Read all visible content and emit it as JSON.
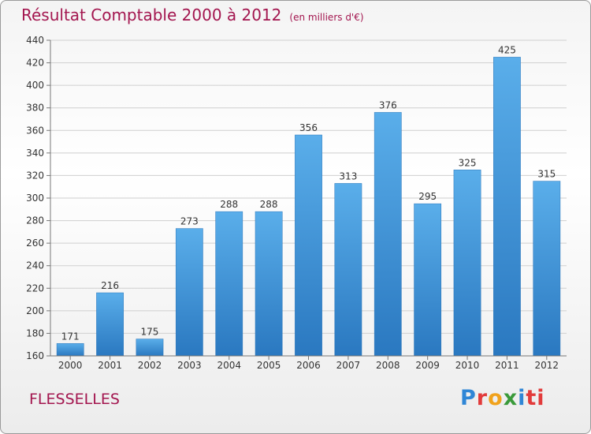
{
  "chart_data": {
    "type": "bar",
    "title": "Résultat Comptable 2000 à 2012",
    "subtitle": "(en milliers d'€)",
    "categories": [
      "2000",
      "2001",
      "2002",
      "2003",
      "2004",
      "2005",
      "2006",
      "2007",
      "2008",
      "2009",
      "2010",
      "2011",
      "2012"
    ],
    "values": [
      171,
      216,
      175,
      273,
      288,
      288,
      356,
      313,
      376,
      295,
      325,
      425,
      315
    ],
    "ylim": [
      160,
      440
    ],
    "yticks": [
      160,
      180,
      200,
      220,
      240,
      260,
      280,
      300,
      320,
      340,
      360,
      380,
      400,
      420,
      440
    ],
    "xlabel": "",
    "ylabel": "",
    "grid": true,
    "bar_color": "#3a8fd6"
  },
  "footer": {
    "name": "FLESSELLES"
  },
  "logo": {
    "letters": [
      "P",
      "r",
      "o",
      "x",
      "i",
      "ti"
    ]
  }
}
